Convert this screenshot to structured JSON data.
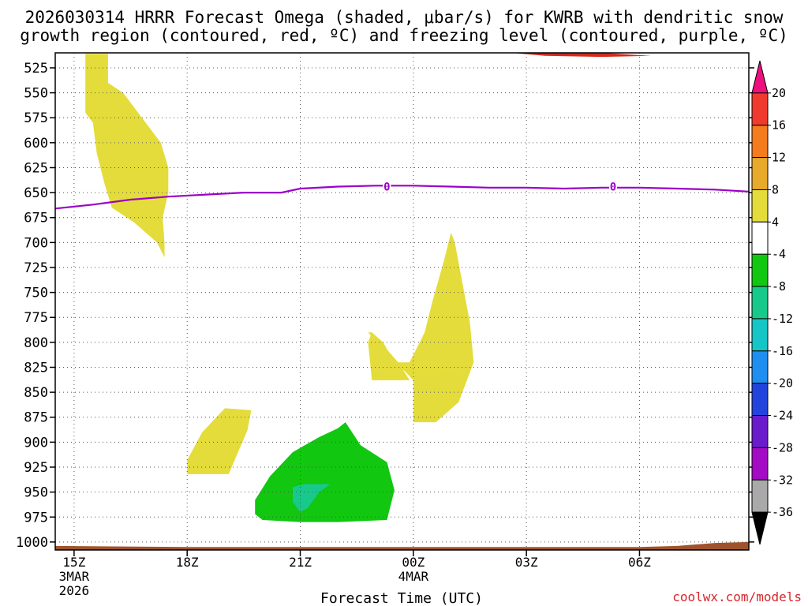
{
  "chart_data": {
    "type": "cross-section",
    "title_line1": "2026030314 HRRR Forecast Omega (shaded, μbar/s) for KWRB with dendritic snow",
    "title_line2": "growth region (contoured, red, ºC) and freezing level (contoured, purple, ºC)",
    "xlabel": "Forecast Time (UTC)",
    "credit": "coolwx.com/models",
    "x_start_hour": 14.5,
    "x_end_hour": 32.9,
    "y_range_hpa": [
      510,
      1008
    ],
    "y_ticks": [
      525,
      550,
      575,
      600,
      625,
      650,
      675,
      700,
      725,
      750,
      775,
      800,
      825,
      850,
      875,
      900,
      925,
      950,
      975,
      1000
    ],
    "x_ticks": [
      {
        "hour": 15,
        "label": "15Z",
        "date": "3MAR",
        "year": "2026"
      },
      {
        "hour": 18,
        "label": "18Z"
      },
      {
        "hour": 21,
        "label": "21Z"
      },
      {
        "hour": 24,
        "label": "00Z",
        "date": "4MAR"
      },
      {
        "hour": 27,
        "label": "03Z"
      },
      {
        "hour": 30,
        "label": "06Z"
      }
    ],
    "grid": true,
    "colorbar": {
      "labels": [
        "20",
        "16",
        "12",
        "8",
        "4",
        "-4",
        "-8",
        "-12",
        "-16",
        "-20",
        "-24",
        "-28",
        "-32",
        "-36"
      ],
      "colors": [
        "#ee0e7d",
        "#f03a2e",
        "#f47c1e",
        "#e8aa2a",
        "#e4dc3a",
        "#ffffff",
        "#11c710",
        "#17c98a",
        "#16c6c6",
        "#1e8ef0",
        "#2244dd",
        "#6a1ccc",
        "#a40bc4",
        "#a9a9a9",
        "#000000"
      ]
    },
    "freezing_level": {
      "label": "0",
      "color": "#9b00c8",
      "points": [
        [
          14.5,
          666
        ],
        [
          15.5,
          662
        ],
        [
          16.5,
          657
        ],
        [
          17.5,
          654
        ],
        [
          18.5,
          652
        ],
        [
          19.5,
          650
        ],
        [
          20.5,
          650
        ],
        [
          21.0,
          646
        ],
        [
          22.0,
          644
        ],
        [
          23.0,
          643
        ],
        [
          24.0,
          643
        ],
        [
          25.0,
          644
        ],
        [
          26.0,
          645
        ],
        [
          27.0,
          645
        ],
        [
          28.0,
          646
        ],
        [
          29.0,
          645
        ],
        [
          30.0,
          645
        ],
        [
          31.0,
          646
        ],
        [
          32.0,
          647
        ],
        [
          32.9,
          649
        ]
      ]
    },
    "dendritic_zone": {
      "color": "#d22b1e",
      "points": [
        [
          26.6,
          510
        ],
        [
          27.5,
          513
        ],
        [
          29.0,
          514
        ],
        [
          30.3,
          513
        ],
        [
          29.0,
          510
        ]
      ]
    },
    "surface": {
      "color": "#a0522d",
      "points": [
        [
          14.5,
          1004
        ],
        [
          18.0,
          1005
        ],
        [
          21.0,
          1005
        ],
        [
          24.0,
          1005
        ],
        [
          30.0,
          1005
        ],
        [
          31.0,
          1004
        ],
        [
          32.0,
          1001
        ],
        [
          32.9,
          1000
        ]
      ]
    },
    "omega_regions": [
      {
        "name": "upward-motion-4-8-a",
        "value_range": [
          4,
          8
        ],
        "color": "#e4dc3a",
        "points": [
          [
            15.3,
            511
          ],
          [
            15.9,
            511
          ],
          [
            15.9,
            540
          ],
          [
            16.3,
            550
          ],
          [
            16.8,
            575
          ],
          [
            17.3,
            600
          ],
          [
            17.5,
            625
          ],
          [
            17.5,
            650
          ],
          [
            17.35,
            675
          ],
          [
            17.4,
            700
          ],
          [
            17.4,
            715
          ],
          [
            17.2,
            700
          ],
          [
            16.6,
            680
          ],
          [
            16.0,
            665
          ],
          [
            15.8,
            640
          ],
          [
            15.6,
            610
          ],
          [
            15.5,
            580
          ],
          [
            15.3,
            570
          ],
          [
            15.3,
            511
          ]
        ]
      },
      {
        "name": "upward-motion-4-8-b",
        "value_range": [
          4,
          8
        ],
        "color": "#e4dc3a",
        "points": [
          [
            18.0,
            918
          ],
          [
            18.4,
            890
          ],
          [
            19.0,
            866
          ],
          [
            19.7,
            868
          ],
          [
            19.6,
            888
          ],
          [
            19.1,
            932
          ],
          [
            18.0,
            932
          ]
        ]
      },
      {
        "name": "upward-motion-4-8-c",
        "value_range": [
          4,
          8
        ],
        "color": "#e4dc3a",
        "points": [
          [
            22.8,
            790
          ],
          [
            23.2,
            808
          ],
          [
            23.8,
            830
          ],
          [
            24.0,
            838
          ],
          [
            24.0,
            880
          ],
          [
            24.6,
            880
          ],
          [
            25.2,
            860
          ],
          [
            25.6,
            820
          ],
          [
            25.5,
            780
          ],
          [
            25.3,
            740
          ],
          [
            25.1,
            700
          ],
          [
            25.0,
            690
          ],
          [
            24.8,
            720
          ],
          [
            24.5,
            760
          ],
          [
            24.3,
            790
          ],
          [
            23.9,
            820
          ],
          [
            23.5,
            820
          ],
          [
            23.2,
            800
          ],
          [
            22.9,
            790
          ]
        ]
      },
      {
        "name": "upward-motion-4-8-d",
        "value_range": [
          4,
          8
        ],
        "color": "#e4dc3a",
        "points": [
          [
            22.8,
            800
          ],
          [
            22.9,
            838
          ],
          [
            23.9,
            838
          ],
          [
            23.6,
            820
          ],
          [
            22.9,
            790
          ]
        ]
      },
      {
        "name": "downward-motion-neg4-neg8",
        "value_range": [
          -8,
          -4
        ],
        "color": "#11c710",
        "points": [
          [
            19.8,
            958
          ],
          [
            20.2,
            934
          ],
          [
            20.8,
            910
          ],
          [
            21.5,
            895
          ],
          [
            22.0,
            886
          ],
          [
            22.2,
            880
          ],
          [
            22.6,
            903
          ],
          [
            23.3,
            920
          ],
          [
            23.5,
            948
          ],
          [
            23.3,
            978
          ],
          [
            22.0,
            980
          ],
          [
            21.0,
            980
          ],
          [
            20.0,
            978
          ],
          [
            19.8,
            972
          ],
          [
            19.8,
            958
          ]
        ]
      },
      {
        "name": "downward-motion-neg8-neg12",
        "value_range": [
          -12,
          -8
        ],
        "color": "#17c98a",
        "points": [
          [
            20.8,
            945
          ],
          [
            21.1,
            942
          ],
          [
            21.8,
            942
          ],
          [
            21.5,
            950
          ],
          [
            21.2,
            966
          ],
          [
            21.0,
            970
          ],
          [
            20.8,
            960
          ]
        ]
      }
    ]
  }
}
